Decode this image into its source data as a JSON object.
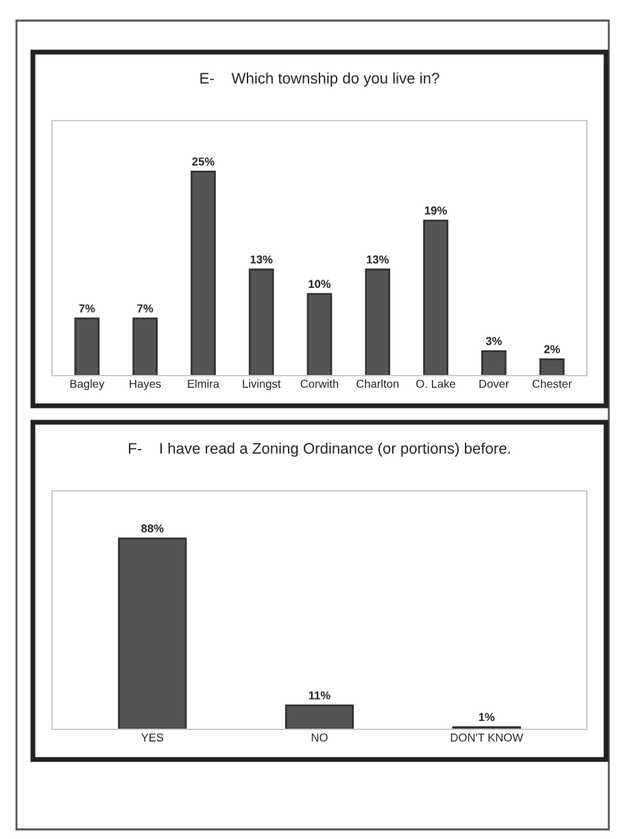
{
  "chart_data": [
    {
      "type": "bar",
      "title": "E-    Which township do you live in?",
      "categories": [
        "Bagley",
        "Hayes",
        "Elmira",
        "Livingst",
        "Corwith",
        "Charlton",
        "O. Lake",
        "Dover",
        "Chester"
      ],
      "values": [
        7,
        7,
        25,
        13,
        10,
        13,
        19,
        3,
        2
      ],
      "value_labels": [
        "7%",
        "7%",
        "25%",
        "13%",
        "10%",
        "13%",
        "19%",
        "3%",
        "2%"
      ],
      "color": "#555555",
      "grid": false,
      "legend": false
    },
    {
      "type": "bar",
      "title": "F-    I have read a Zoning Ordinance (or portions) before.",
      "categories": [
        "YES",
        "NO",
        "DON'T KNOW"
      ],
      "values": [
        88,
        11,
        1
      ],
      "value_labels": [
        "88%",
        "11%",
        "1%"
      ],
      "color": "#555555",
      "grid": false,
      "legend": false
    }
  ]
}
